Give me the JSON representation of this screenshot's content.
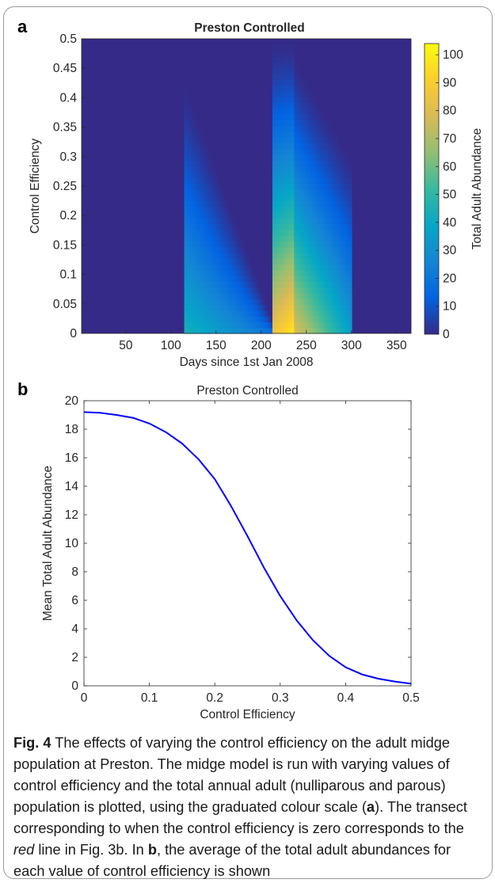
{
  "figure": {
    "panel_a_letter": "a",
    "panel_b_letter": "b",
    "caption": {
      "label": "Fig. 4",
      "text_1": " The effects of varying the control efficiency on the adult midge population at Preston. The midge model is run with varying values of control efficiency and the total annual adult (nulliparous and parous) population is plotted, using the graduated colour scale (",
      "ref_a": "a",
      "text_2": "). The transect corresponding to when the control efficiency is zero corresponds to the ",
      "red_word": "red",
      "text_3": " line in Fig. 3b. In ",
      "ref_b": "b",
      "text_4": ", the average of the total adult abundances for each value of control efficiency is shown"
    }
  },
  "chart_data": [
    {
      "type": "heatmap",
      "title": "Preston Controlled",
      "xlabel": "Days since 1st Jan 2008",
      "ylabel": "Control Efficiency",
      "colorbar_label": "Total Adult Abundance",
      "xlim": [
        1,
        366
      ],
      "ylim": [
        0,
        0.5
      ],
      "x_ticks": [
        "50",
        "100",
        "150",
        "200",
        "250",
        "300",
        "350"
      ],
      "y_ticks": [
        "0",
        "0.05",
        "0.1",
        "0.15",
        "0.2",
        "0.25",
        "0.3",
        "0.35",
        "0.4",
        "0.45",
        "0.5"
      ],
      "colorbar_range": [
        0,
        104
      ],
      "colorbar_ticks": [
        "0",
        "10",
        "20",
        "30",
        "40",
        "50",
        "60",
        "70",
        "80",
        "90",
        "100"
      ],
      "colormap": "parula",
      "colormap_stops": [
        "#352a87",
        "#0363e1",
        "#1485d4",
        "#06a7c6",
        "#38b99e",
        "#92bf73",
        "#d9ba56",
        "#fcce2e",
        "#f9fb0e"
      ],
      "regions": [
        {
          "x": [
            114,
            213
          ],
          "value_at_zero_efficiency": [
            45,
            20
          ],
          "extinction_efficiency": [
            0.44,
            0.02
          ]
        },
        {
          "x": [
            213,
            237
          ],
          "value_at_zero_efficiency": [
            85,
            100
          ],
          "extinction_efficiency": [
            0.5,
            0.5
          ]
        },
        {
          "x": [
            237,
            301
          ],
          "value_at_zero_efficiency": [
            80,
            35
          ],
          "extinction_efficiency": [
            0.47,
            0.3
          ]
        }
      ]
    },
    {
      "type": "line",
      "title": "Preston Controlled",
      "xlabel": "Control Efficiency",
      "ylabel": "Mean Total Adult Abundance",
      "xlim": [
        0,
        0.5
      ],
      "ylim": [
        0,
        20
      ],
      "x_ticks": [
        "0",
        "0.1",
        "0.2",
        "0.3",
        "0.4",
        "0.5"
      ],
      "y_ticks": [
        "0",
        "2",
        "4",
        "6",
        "8",
        "10",
        "12",
        "14",
        "16",
        "18",
        "20"
      ],
      "color": "#0000ff",
      "x": [
        0,
        0.025,
        0.05,
        0.075,
        0.1,
        0.125,
        0.15,
        0.175,
        0.2,
        0.225,
        0.25,
        0.275,
        0.3,
        0.325,
        0.35,
        0.375,
        0.4,
        0.425,
        0.45,
        0.475,
        0.5
      ],
      "y": [
        19.2,
        19.15,
        19.0,
        18.8,
        18.4,
        17.8,
        17.0,
        15.9,
        14.5,
        12.6,
        10.5,
        8.3,
        6.3,
        4.6,
        3.2,
        2.1,
        1.3,
        0.8,
        0.5,
        0.3,
        0.15
      ]
    }
  ]
}
